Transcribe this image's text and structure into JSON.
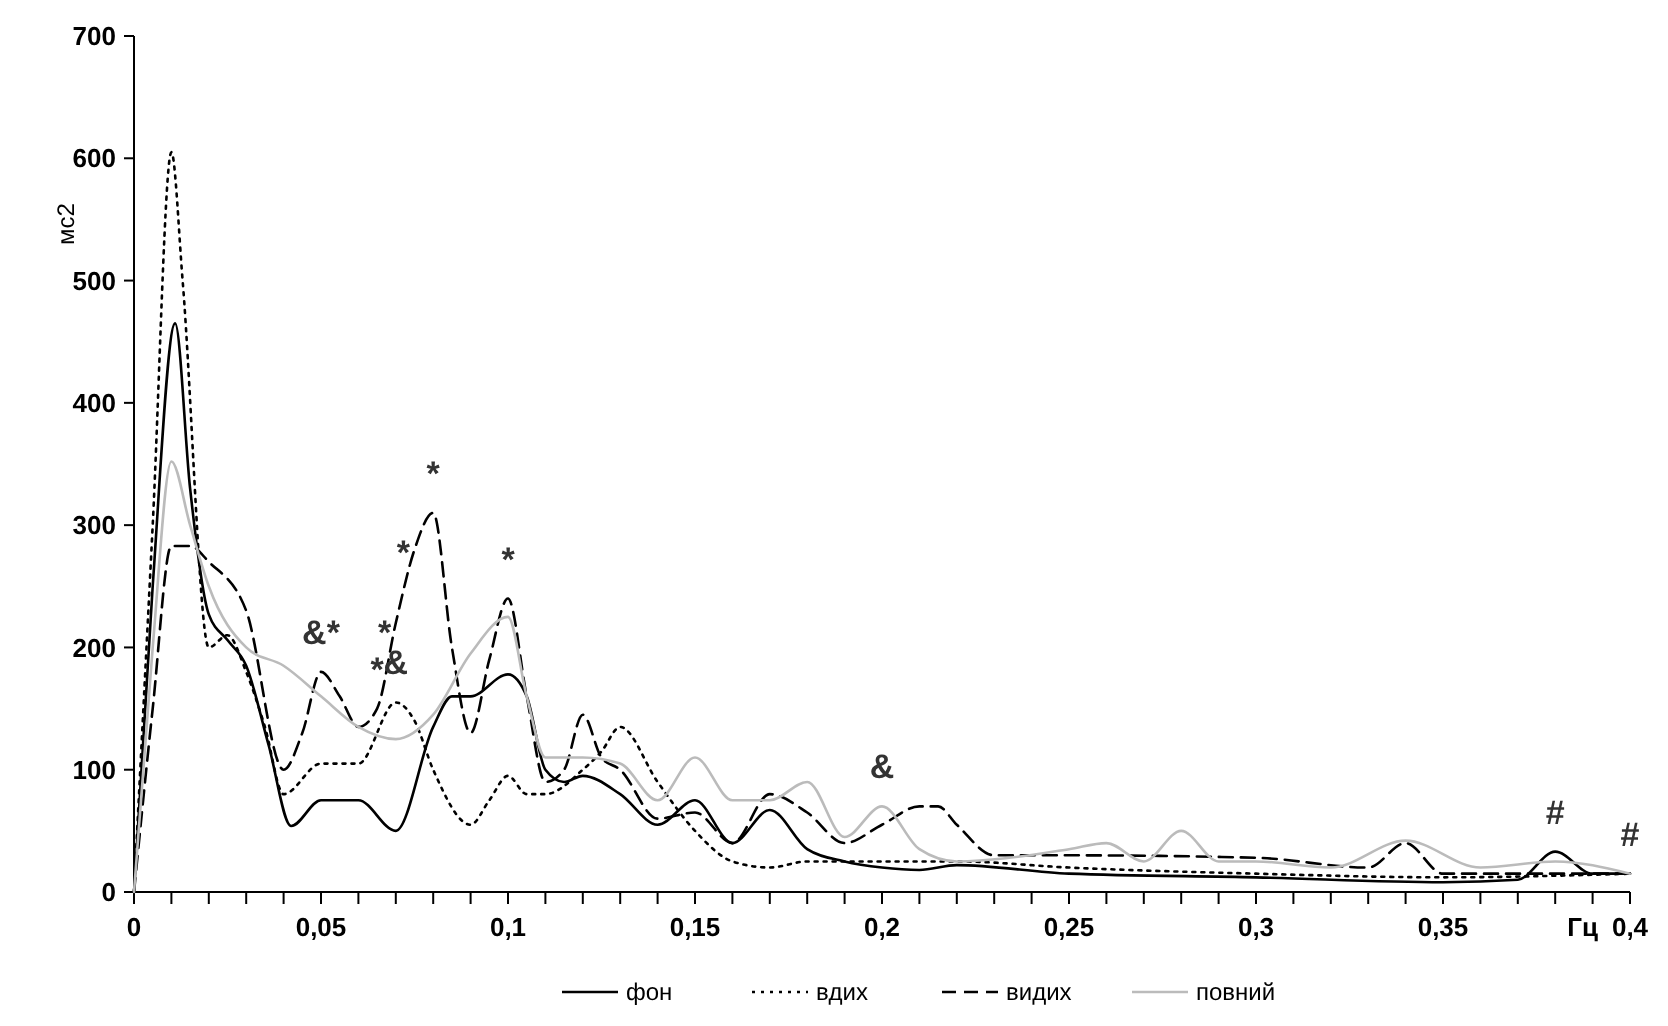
{
  "chart_data": {
    "type": "line",
    "ylabel": "мс2",
    "xlabel": "Гц",
    "xlim": [
      0,
      0.4
    ],
    "ylim": [
      0,
      700
    ],
    "yticks": [
      0,
      100,
      200,
      300,
      400,
      500,
      600,
      700
    ],
    "xticks": [
      {
        "value": 0,
        "label": "0"
      },
      {
        "value": 0.01,
        "label": null
      },
      {
        "value": 0.02,
        "label": null
      },
      {
        "value": 0.03,
        "label": null
      },
      {
        "value": 0.04,
        "label": null
      },
      {
        "value": 0.05,
        "label": "0,05"
      },
      {
        "value": 0.06,
        "label": null
      },
      {
        "value": 0.07,
        "label": null
      },
      {
        "value": 0.08,
        "label": null
      },
      {
        "value": 0.09,
        "label": null
      },
      {
        "value": 0.1,
        "label": "0,1"
      },
      {
        "value": 0.11,
        "label": null
      },
      {
        "value": 0.12,
        "label": null
      },
      {
        "value": 0.13,
        "label": null
      },
      {
        "value": 0.14,
        "label": null
      },
      {
        "value": 0.15,
        "label": "0,15"
      },
      {
        "value": 0.16,
        "label": null
      },
      {
        "value": 0.17,
        "label": null
      },
      {
        "value": 0.18,
        "label": null
      },
      {
        "value": 0.19,
        "label": null
      },
      {
        "value": 0.2,
        "label": "0,2"
      },
      {
        "value": 0.21,
        "label": null
      },
      {
        "value": 0.22,
        "label": null
      },
      {
        "value": 0.23,
        "label": null
      },
      {
        "value": 0.24,
        "label": null
      },
      {
        "value": 0.25,
        "label": "0,25"
      },
      {
        "value": 0.26,
        "label": null
      },
      {
        "value": 0.27,
        "label": null
      },
      {
        "value": 0.28,
        "label": null
      },
      {
        "value": 0.29,
        "label": null
      },
      {
        "value": 0.3,
        "label": "0,3"
      },
      {
        "value": 0.31,
        "label": null
      },
      {
        "value": 0.32,
        "label": null
      },
      {
        "value": 0.33,
        "label": null
      },
      {
        "value": 0.34,
        "label": null
      },
      {
        "value": 0.35,
        "label": "0,35"
      },
      {
        "value": 0.36,
        "label": null
      },
      {
        "value": 0.37,
        "label": null
      },
      {
        "value": 0.38,
        "label": null
      },
      {
        "value": 0.39,
        "label": null
      },
      {
        "value": 0.4,
        "label": "0,4"
      }
    ],
    "grid": false,
    "legend": "bottom",
    "marker": "none",
    "series": [
      {
        "name": "фон",
        "color": "#000000",
        "line_style": "solid",
        "x": [
          0,
          0.005,
          0.011,
          0.015,
          0.02,
          0.025,
          0.03,
          0.036,
          0.042,
          0.05,
          0.06,
          0.07,
          0.08,
          0.085,
          0.09,
          0.1,
          0.105,
          0.11,
          0.115,
          0.12,
          0.13,
          0.14,
          0.15,
          0.16,
          0.17,
          0.18,
          0.19,
          0.2,
          0.21,
          0.22,
          0.25,
          0.3,
          0.35,
          0.37,
          0.38,
          0.39,
          0.4
        ],
        "values": [
          0,
          250,
          465,
          330,
          227,
          206,
          185,
          120,
          54,
          75,
          75,
          50,
          135,
          160,
          160,
          178,
          160,
          100,
          90,
          95,
          80,
          55,
          75,
          40,
          67,
          35,
          25,
          20,
          18,
          22,
          15,
          12,
          8,
          10,
          33,
          15,
          15
        ]
      },
      {
        "name": "вдих",
        "color": "#000000",
        "line_style": "dotted",
        "x": [
          0,
          0.005,
          0.01,
          0.013,
          0.02,
          0.025,
          0.03,
          0.035,
          0.04,
          0.05,
          0.06,
          0.07,
          0.075,
          0.08,
          0.09,
          0.095,
          0.1,
          0.105,
          0.11,
          0.12,
          0.125,
          0.13,
          0.14,
          0.15,
          0.16,
          0.17,
          0.18,
          0.2,
          0.22,
          0.25,
          0.3,
          0.35,
          0.4
        ],
        "values": [
          0,
          300,
          605,
          500,
          200,
          210,
          180,
          135,
          80,
          105,
          105,
          155,
          140,
          100,
          55,
          75,
          95,
          80,
          80,
          100,
          115,
          135,
          90,
          50,
          25,
          20,
          25,
          25,
          25,
          20,
          15,
          12,
          15
        ]
      },
      {
        "name": "видих",
        "color": "#000000",
        "line_style": "dashed",
        "x": [
          0,
          0.005,
          0.01,
          0.015,
          0.02,
          0.03,
          0.04,
          0.045,
          0.05,
          0.055,
          0.06,
          0.065,
          0.07,
          0.075,
          0.08,
          0.085,
          0.09,
          0.095,
          0.1,
          0.105,
          0.11,
          0.115,
          0.12,
          0.125,
          0.13,
          0.14,
          0.15,
          0.16,
          0.17,
          0.18,
          0.19,
          0.2,
          0.21,
          0.215,
          0.22,
          0.23,
          0.25,
          0.3,
          0.33,
          0.34,
          0.35,
          0.4
        ],
        "values": [
          0,
          150,
          283,
          283,
          270,
          230,
          100,
          130,
          180,
          160,
          135,
          150,
          220,
          280,
          310,
          200,
          130,
          190,
          240,
          160,
          90,
          100,
          145,
          110,
          100,
          60,
          65,
          40,
          80,
          65,
          40,
          55,
          70,
          70,
          55,
          30,
          30,
          28,
          20,
          40,
          15,
          15
        ]
      },
      {
        "name": "повний",
        "color": "#bbbbbb",
        "line_style": "solid",
        "x": [
          0,
          0.005,
          0.01,
          0.015,
          0.02,
          0.03,
          0.04,
          0.05,
          0.06,
          0.07,
          0.08,
          0.09,
          0.1,
          0.105,
          0.11,
          0.12,
          0.13,
          0.14,
          0.15,
          0.16,
          0.17,
          0.18,
          0.19,
          0.2,
          0.21,
          0.22,
          0.25,
          0.26,
          0.27,
          0.28,
          0.29,
          0.3,
          0.32,
          0.34,
          0.36,
          0.38,
          0.4
        ],
        "values": [
          0,
          200,
          352,
          300,
          250,
          200,
          185,
          160,
          135,
          125,
          145,
          195,
          225,
          160,
          110,
          110,
          105,
          75,
          110,
          75,
          75,
          90,
          45,
          70,
          35,
          25,
          35,
          40,
          25,
          50,
          25,
          25,
          20,
          42,
          20,
          25,
          15
        ]
      }
    ],
    "annotations": [
      {
        "text": "&*",
        "x": 0.05,
        "y": 180
      },
      {
        "text": "*",
        "x": 0.065,
        "y": 150
      },
      {
        "text": "*",
        "x": 0.067,
        "y": 180
      },
      {
        "text": "*",
        "x": 0.072,
        "y": 245
      },
      {
        "text": "*",
        "x": 0.08,
        "y": 310
      },
      {
        "text": "*",
        "x": 0.1,
        "y": 240
      },
      {
        "text": "&",
        "x": 0.07,
        "y": 155
      },
      {
        "text": "&",
        "x": 0.2,
        "y": 70
      },
      {
        "text": "#",
        "x": 0.38,
        "y": 33
      },
      {
        "text": "#",
        "x": 0.4,
        "y": 15
      }
    ]
  }
}
